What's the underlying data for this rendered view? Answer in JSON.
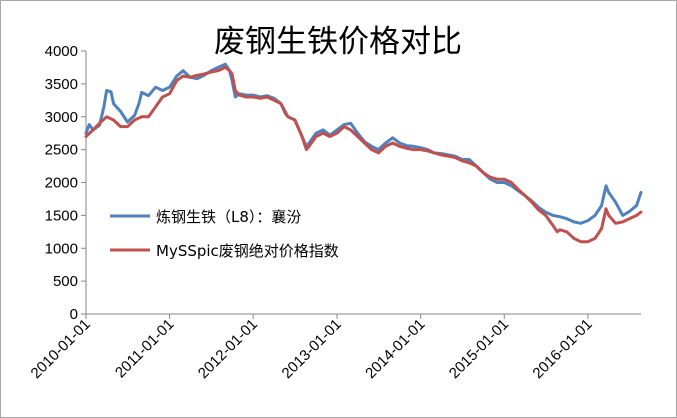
{
  "chart_data": {
    "type": "line",
    "title": "废钢生铁价格对比",
    "xlabel": "",
    "ylabel": "",
    "ylim": [
      0,
      4000
    ],
    "yticks": [
      "0",
      "500",
      "1000",
      "1500",
      "2000",
      "2500",
      "3000",
      "3500",
      "4000"
    ],
    "xticks": [
      "2010-01-01",
      "2011-01-01",
      "2012-01-01",
      "2013-01-01",
      "2014-01-01",
      "2015-01-01",
      "2016-01-01"
    ],
    "xlim": [
      "2010-01-01",
      "2016-08-20"
    ],
    "grid": false,
    "legend_position": "bottom-left inside",
    "series": [
      {
        "name": "炼钢生铁（L8）：襄汾",
        "color": "#4f81bd",
        "points": [
          [
            "2010-01-01",
            2750
          ],
          [
            "2010-01-15",
            2880
          ],
          [
            "2010-02-01",
            2800
          ],
          [
            "2010-03-01",
            2870
          ],
          [
            "2010-03-20",
            3150
          ],
          [
            "2010-04-01",
            3400
          ],
          [
            "2010-04-20",
            3380
          ],
          [
            "2010-05-01",
            3200
          ],
          [
            "2010-06-01",
            3080
          ],
          [
            "2010-07-01",
            2920
          ],
          [
            "2010-08-01",
            3020
          ],
          [
            "2010-08-20",
            3200
          ],
          [
            "2010-09-01",
            3370
          ],
          [
            "2010-10-01",
            3320
          ],
          [
            "2010-11-01",
            3450
          ],
          [
            "2010-12-01",
            3400
          ],
          [
            "2011-01-01",
            3450
          ],
          [
            "2011-02-01",
            3620
          ],
          [
            "2011-03-01",
            3700
          ],
          [
            "2011-04-01",
            3600
          ],
          [
            "2011-05-01",
            3580
          ],
          [
            "2011-06-01",
            3630
          ],
          [
            "2011-07-01",
            3700
          ],
          [
            "2011-08-01",
            3750
          ],
          [
            "2011-09-01",
            3800
          ],
          [
            "2011-09-20",
            3700
          ],
          [
            "2011-10-01",
            3550
          ],
          [
            "2011-10-15",
            3300
          ],
          [
            "2011-11-01",
            3350
          ],
          [
            "2011-12-01",
            3330
          ],
          [
            "2012-01-01",
            3330
          ],
          [
            "2012-02-01",
            3300
          ],
          [
            "2012-03-01",
            3320
          ],
          [
            "2012-04-01",
            3280
          ],
          [
            "2012-05-01",
            3200
          ],
          [
            "2012-05-20",
            3050
          ],
          [
            "2012-06-01",
            3000
          ],
          [
            "2012-07-01",
            2950
          ],
          [
            "2012-08-01",
            2700
          ],
          [
            "2012-08-20",
            2550
          ],
          [
            "2012-09-01",
            2600
          ],
          [
            "2012-10-01",
            2750
          ],
          [
            "2012-11-01",
            2800
          ],
          [
            "2012-12-01",
            2720
          ],
          [
            "2013-01-01",
            2800
          ],
          [
            "2013-02-01",
            2880
          ],
          [
            "2013-03-01",
            2900
          ],
          [
            "2013-04-01",
            2750
          ],
          [
            "2013-05-01",
            2620
          ],
          [
            "2013-06-01",
            2550
          ],
          [
            "2013-07-01",
            2500
          ],
          [
            "2013-08-01",
            2600
          ],
          [
            "2013-09-01",
            2680
          ],
          [
            "2013-10-01",
            2600
          ],
          [
            "2013-11-01",
            2560
          ],
          [
            "2013-12-01",
            2550
          ],
          [
            "2014-01-01",
            2530
          ],
          [
            "2014-02-01",
            2500
          ],
          [
            "2014-03-01",
            2450
          ],
          [
            "2014-04-01",
            2440
          ],
          [
            "2014-05-01",
            2420
          ],
          [
            "2014-06-01",
            2400
          ],
          [
            "2014-07-01",
            2350
          ],
          [
            "2014-08-01",
            2350
          ],
          [
            "2014-09-01",
            2250
          ],
          [
            "2014-10-01",
            2150
          ],
          [
            "2014-11-01",
            2050
          ],
          [
            "2014-12-01",
            2000
          ],
          [
            "2015-01-01",
            2000
          ],
          [
            "2015-02-01",
            1950
          ],
          [
            "2015-03-01",
            1880
          ],
          [
            "2015-04-01",
            1800
          ],
          [
            "2015-05-01",
            1720
          ],
          [
            "2015-06-01",
            1620
          ],
          [
            "2015-07-01",
            1550
          ],
          [
            "2015-08-01",
            1500
          ],
          [
            "2015-09-01",
            1480
          ],
          [
            "2015-10-01",
            1450
          ],
          [
            "2015-11-01",
            1400
          ],
          [
            "2015-12-01",
            1380
          ],
          [
            "2016-01-01",
            1420
          ],
          [
            "2016-02-01",
            1500
          ],
          [
            "2016-03-01",
            1650
          ],
          [
            "2016-03-20",
            1950
          ],
          [
            "2016-04-01",
            1850
          ],
          [
            "2016-05-01",
            1700
          ],
          [
            "2016-06-01",
            1500
          ],
          [
            "2016-07-01",
            1560
          ],
          [
            "2016-08-01",
            1650
          ],
          [
            "2016-08-20",
            1850
          ]
        ]
      },
      {
        "name": "MySSpic废钢绝对价格指数",
        "color": "#c0504d",
        "points": [
          [
            "2010-01-01",
            2700
          ],
          [
            "2010-02-01",
            2800
          ],
          [
            "2010-03-01",
            2900
          ],
          [
            "2010-04-01",
            3000
          ],
          [
            "2010-05-01",
            2950
          ],
          [
            "2010-06-01",
            2850
          ],
          [
            "2010-07-01",
            2850
          ],
          [
            "2010-08-01",
            2950
          ],
          [
            "2010-09-01",
            3000
          ],
          [
            "2010-10-01",
            3000
          ],
          [
            "2010-11-01",
            3150
          ],
          [
            "2010-12-01",
            3300
          ],
          [
            "2011-01-01",
            3350
          ],
          [
            "2011-02-01",
            3550
          ],
          [
            "2011-03-01",
            3620
          ],
          [
            "2011-04-01",
            3600
          ],
          [
            "2011-05-01",
            3630
          ],
          [
            "2011-06-01",
            3650
          ],
          [
            "2011-07-01",
            3680
          ],
          [
            "2011-08-01",
            3700
          ],
          [
            "2011-09-01",
            3750
          ],
          [
            "2011-09-20",
            3700
          ],
          [
            "2011-10-01",
            3650
          ],
          [
            "2011-10-15",
            3400
          ],
          [
            "2011-11-01",
            3330
          ],
          [
            "2011-12-01",
            3300
          ],
          [
            "2012-01-01",
            3300
          ],
          [
            "2012-02-01",
            3280
          ],
          [
            "2012-03-01",
            3300
          ],
          [
            "2012-04-01",
            3250
          ],
          [
            "2012-05-01",
            3200
          ],
          [
            "2012-06-01",
            3000
          ],
          [
            "2012-07-01",
            2950
          ],
          [
            "2012-08-01",
            2700
          ],
          [
            "2012-08-20",
            2500
          ],
          [
            "2012-09-01",
            2550
          ],
          [
            "2012-10-01",
            2700
          ],
          [
            "2012-11-01",
            2750
          ],
          [
            "2012-12-01",
            2700
          ],
          [
            "2013-01-01",
            2750
          ],
          [
            "2013-02-01",
            2850
          ],
          [
            "2013-03-01",
            2800
          ],
          [
            "2013-04-01",
            2700
          ],
          [
            "2013-05-01",
            2600
          ],
          [
            "2013-06-01",
            2500
          ],
          [
            "2013-07-01",
            2450
          ],
          [
            "2013-08-01",
            2550
          ],
          [
            "2013-09-01",
            2600
          ],
          [
            "2013-10-01",
            2550
          ],
          [
            "2013-11-01",
            2520
          ],
          [
            "2013-12-01",
            2500
          ],
          [
            "2014-01-01",
            2500
          ],
          [
            "2014-02-01",
            2480
          ],
          [
            "2014-03-01",
            2450
          ],
          [
            "2014-04-01",
            2420
          ],
          [
            "2014-05-01",
            2400
          ],
          [
            "2014-06-01",
            2380
          ],
          [
            "2014-07-01",
            2330
          ],
          [
            "2014-08-01",
            2300
          ],
          [
            "2014-09-01",
            2250
          ],
          [
            "2014-10-01",
            2150
          ],
          [
            "2014-11-01",
            2080
          ],
          [
            "2014-12-01",
            2050
          ],
          [
            "2015-01-01",
            2050
          ],
          [
            "2015-02-01",
            2000
          ],
          [
            "2015-03-01",
            1900
          ],
          [
            "2015-04-01",
            1800
          ],
          [
            "2015-05-01",
            1700
          ],
          [
            "2015-06-01",
            1580
          ],
          [
            "2015-07-01",
            1500
          ],
          [
            "2015-08-01",
            1350
          ],
          [
            "2015-08-20",
            1250
          ],
          [
            "2015-09-01",
            1280
          ],
          [
            "2015-10-01",
            1250
          ],
          [
            "2015-11-01",
            1150
          ],
          [
            "2015-12-01",
            1100
          ],
          [
            "2016-01-01",
            1100
          ],
          [
            "2016-02-01",
            1150
          ],
          [
            "2016-03-01",
            1300
          ],
          [
            "2016-03-20",
            1600
          ],
          [
            "2016-04-01",
            1500
          ],
          [
            "2016-05-01",
            1380
          ],
          [
            "2016-06-01",
            1400
          ],
          [
            "2016-07-01",
            1450
          ],
          [
            "2016-08-01",
            1500
          ],
          [
            "2016-08-20",
            1550
          ]
        ]
      }
    ]
  }
}
